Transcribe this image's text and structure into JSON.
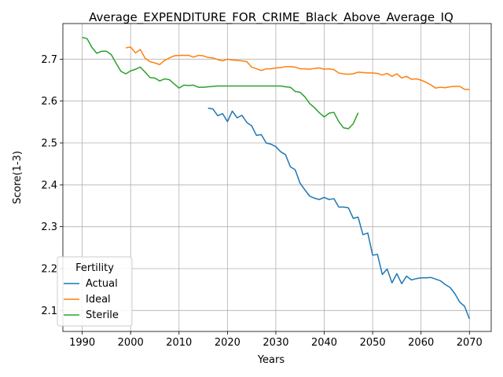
{
  "chart_data": {
    "type": "line",
    "title": "Average_EXPENDITURE_FOR_CRIME_Black_Above_Average_IQ",
    "xlabel": "Years",
    "ylabel": "Score(1-3)",
    "xlim": [
      1986,
      2074.5
    ],
    "ylim": [
      2.05,
      2.785
    ],
    "xticks": [
      1990,
      2000,
      2010,
      2020,
      2030,
      2040,
      2050,
      2060,
      2070
    ],
    "yticks": [
      2.1,
      2.2,
      2.3,
      2.4,
      2.5,
      2.6,
      2.7
    ],
    "grid": true,
    "legend": {
      "title": "Fertility",
      "placement": "lower-left"
    },
    "series": [
      {
        "name": "Actual",
        "color": "#1f77b4",
        "x": [
          2016,
          2017,
          2018,
          2019,
          2020,
          2021,
          2022,
          2023,
          2024,
          2025,
          2026,
          2027,
          2028,
          2029,
          2030,
          2031,
          2032,
          2033,
          2034,
          2035,
          2036,
          2037,
          2038,
          2039,
          2040,
          2041,
          2042,
          2043,
          2044,
          2045,
          2046,
          2047,
          2048,
          2049,
          2050,
          2051,
          2052,
          2053,
          2054,
          2055,
          2056,
          2057,
          2058,
          2059,
          2060,
          2061,
          2062,
          2063,
          2064,
          2065,
          2066,
          2067,
          2068,
          2069,
          2070
        ],
        "y": [
          2.583,
          2.581,
          2.565,
          2.57,
          2.551,
          2.576,
          2.56,
          2.566,
          2.549,
          2.541,
          2.518,
          2.52,
          2.5,
          2.497,
          2.491,
          2.479,
          2.472,
          2.443,
          2.436,
          2.404,
          2.388,
          2.373,
          2.368,
          2.365,
          2.37,
          2.365,
          2.367,
          2.347,
          2.347,
          2.345,
          2.32,
          2.323,
          2.281,
          2.285,
          2.232,
          2.234,
          2.186,
          2.199,
          2.166,
          2.188,
          2.164,
          2.182,
          2.173,
          2.176,
          2.178,
          2.178,
          2.179,
          2.175,
          2.171,
          2.162,
          2.155,
          2.14,
          2.12,
          2.11,
          2.08
        ]
      },
      {
        "name": "Ideal",
        "color": "#ff7f0e",
        "x": [
          1999,
          2000,
          2001,
          2002,
          2003,
          2004,
          2005,
          2006,
          2007,
          2008,
          2009,
          2010,
          2011,
          2012,
          2013,
          2014,
          2015,
          2016,
          2017,
          2018,
          2019,
          2020,
          2021,
          2022,
          2023,
          2024,
          2025,
          2026,
          2027,
          2028,
          2029,
          2030,
          2031,
          2032,
          2033,
          2034,
          2035,
          2036,
          2037,
          2038,
          2039,
          2040,
          2041,
          2042,
          2043,
          2044,
          2045,
          2046,
          2047,
          2048,
          2049,
          2050,
          2051,
          2052,
          2053,
          2054,
          2055,
          2056,
          2057,
          2058,
          2059,
          2060,
          2061,
          2062,
          2063,
          2064,
          2065,
          2066,
          2067,
          2068,
          2069,
          2070
        ],
        "y": [
          2.727,
          2.729,
          2.715,
          2.723,
          2.702,
          2.694,
          2.691,
          2.687,
          2.697,
          2.703,
          2.708,
          2.709,
          2.709,
          2.709,
          2.705,
          2.709,
          2.708,
          2.704,
          2.703,
          2.699,
          2.696,
          2.7,
          2.698,
          2.697,
          2.696,
          2.694,
          2.681,
          2.677,
          2.673,
          2.677,
          2.677,
          2.679,
          2.68,
          2.682,
          2.682,
          2.681,
          2.677,
          2.677,
          2.676,
          2.678,
          2.679,
          2.676,
          2.677,
          2.675,
          2.667,
          2.665,
          2.664,
          2.665,
          2.669,
          2.668,
          2.667,
          2.667,
          2.666,
          2.662,
          2.666,
          2.659,
          2.665,
          2.655,
          2.659,
          2.652,
          2.653,
          2.65,
          2.645,
          2.639,
          2.631,
          2.633,
          2.632,
          2.634,
          2.635,
          2.635,
          2.628,
          2.628
        ]
      },
      {
        "name": "Sterile",
        "color": "#2ca02c",
        "x": [
          1990,
          1991,
          1992,
          1993,
          1994,
          1995,
          1996,
          1997,
          1998,
          1999,
          2000,
          2001,
          2002,
          2003,
          2004,
          2005,
          2006,
          2007,
          2008,
          2009,
          2010,
          2011,
          2012,
          2013,
          2014,
          2015,
          2016,
          2017,
          2018,
          2019,
          2020,
          2021,
          2022,
          2023,
          2024,
          2025,
          2026,
          2027,
          2028,
          2029,
          2030,
          2031,
          2032,
          2033,
          2034,
          2035,
          2036,
          2037,
          2038,
          2039,
          2040,
          2041,
          2042,
          2043,
          2044,
          2045,
          2046,
          2047
        ],
        "y": [
          2.752,
          2.749,
          2.728,
          2.714,
          2.719,
          2.719,
          2.711,
          2.69,
          2.671,
          2.665,
          2.672,
          2.676,
          2.681,
          2.669,
          2.656,
          2.655,
          2.648,
          2.653,
          2.651,
          2.641,
          2.631,
          2.638,
          2.637,
          2.638,
          2.633,
          2.633,
          2.634,
          2.635,
          2.636,
          2.636,
          2.636,
          2.636,
          2.636,
          2.636,
          2.636,
          2.636,
          2.636,
          2.636,
          2.636,
          2.636,
          2.636,
          2.636,
          2.634,
          2.633,
          2.623,
          2.621,
          2.61,
          2.594,
          2.584,
          2.572,
          2.562,
          2.571,
          2.573,
          2.551,
          2.536,
          2.534,
          2.546,
          2.572
        ]
      }
    ]
  }
}
